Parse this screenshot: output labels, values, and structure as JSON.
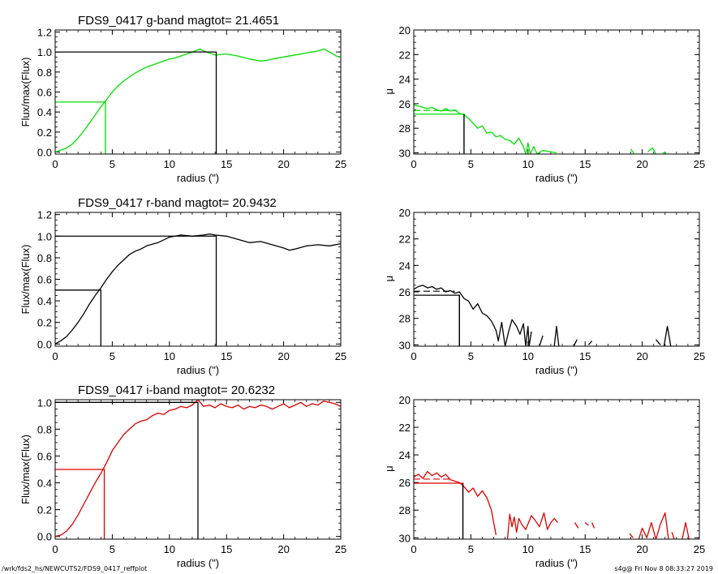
{
  "footer": {
    "path": "/wrk/fds2_hs/NEWCUTS2/FDS9_0417_reffplot",
    "stamp": "s4g@  Fri Nov  8 08:33:27 2019"
  },
  "chart_data": [
    {
      "type": "line",
      "title": "FDS9_0417 g-band  magtot=     21.4651",
      "xlabel": "radius (\")",
      "ylabel": "Flux/max(Flux)",
      "xlim": [
        0,
        25
      ],
      "ylim": [
        -0.02,
        1.22
      ],
      "xticks": [
        0,
        5,
        10,
        15,
        20,
        25
      ],
      "yticks": [
        0.0,
        0.2,
        0.4,
        0.6,
        0.8,
        1.0,
        1.2
      ],
      "yticklabels": [
        "0.0",
        "0.2",
        "0.4",
        "0.6",
        "0.8",
        "1.0",
        "1.2"
      ],
      "color": "#00e000",
      "series": [
        {
          "x": [
            0,
            0.5,
            1,
            1.5,
            2,
            2.5,
            3,
            3.5,
            4,
            4.4,
            5,
            5.5,
            6,
            7,
            8,
            9,
            10,
            10.5,
            11,
            12,
            12.7,
            13,
            14,
            15,
            16,
            17,
            18,
            18.7,
            19,
            20,
            21,
            22,
            23,
            23.5,
            24,
            24.6,
            25
          ],
          "y": [
            0,
            0.02,
            0.04,
            0.08,
            0.14,
            0.21,
            0.29,
            0.37,
            0.45,
            0.51,
            0.6,
            0.66,
            0.71,
            0.79,
            0.85,
            0.89,
            0.93,
            0.94,
            0.96,
            1.0,
            1.03,
            1.01,
            0.97,
            0.98,
            0.96,
            0.93,
            0.91,
            0.92,
            0.93,
            0.95,
            0.97,
            0.99,
            1.01,
            1.03,
            1.0,
            0.96,
            0.95
          ]
        }
      ],
      "markers": {
        "x_half": 4.4,
        "y_half": 0.5,
        "x_total": 14.1,
        "y_total": 1.0
      }
    },
    {
      "type": "line",
      "xlabel": "radius (\")",
      "ylabel": "μ",
      "xlim": [
        0,
        25
      ],
      "ylim": [
        30.1,
        20
      ],
      "y_inverted": true,
      "xticks": [
        0,
        5,
        10,
        15,
        20,
        25
      ],
      "yticks": [
        20,
        22,
        24,
        26,
        28,
        30
      ],
      "color": "#00e000",
      "series": [
        {
          "x": [
            0,
            0.4,
            0.8,
            1.2,
            1.6,
            2,
            2.4,
            2.8,
            3.2,
            3.6,
            4,
            4.4,
            4.8,
            5.2,
            5.6,
            6,
            6.4,
            6.8,
            7.2,
            7.6,
            8,
            8.4,
            8.8,
            9.2,
            9.6,
            9.8,
            10,
            10.2,
            10.5,
            10.8,
            11.3,
            12.5
          ],
          "y": [
            26.1,
            26.2,
            26.3,
            26.4,
            26.3,
            26.5,
            26.6,
            26.4,
            26.6,
            26.5,
            26.8,
            26.9,
            27.2,
            27.6,
            28.0,
            27.8,
            28.4,
            28.3,
            28.7,
            28.6,
            28.9,
            29.0,
            29.3,
            28.8,
            29.5,
            30.1,
            29.2,
            30.1,
            29.5,
            30.1,
            29.8,
            30.0
          ]
        },
        {
          "x": [
            19,
            19.3
          ],
          "y": [
            29.7,
            30.1
          ]
        },
        {
          "x": [
            20.5,
            20.9,
            21.2
          ],
          "y": [
            29.9,
            29.6,
            30.1
          ]
        },
        {
          "x": [
            21.8,
            22.1
          ],
          "y": [
            30.0,
            30.0
          ]
        }
      ],
      "markers": {
        "x_reff": 4.4,
        "y_reff": 26.85,
        "dash_y": 26.55,
        "dash_x": [
          0,
          3.8
        ]
      }
    },
    {
      "type": "line",
      "title": "FDS9_0417 r-band  magtot=     20.9432",
      "xlabel": "radius (\")",
      "ylabel": "Flux/max(Flux)",
      "xlim": [
        0,
        25
      ],
      "ylim": [
        -0.02,
        1.22
      ],
      "xticks": [
        0,
        5,
        10,
        15,
        20,
        25
      ],
      "yticks": [
        0.0,
        0.2,
        0.4,
        0.6,
        0.8,
        1.0,
        1.2
      ],
      "yticklabels": [
        "0.0",
        "0.2",
        "0.4",
        "0.6",
        "0.8",
        "1.0",
        "1.2"
      ],
      "color": "#000000",
      "series": [
        {
          "x": [
            0,
            0.5,
            1,
            1.5,
            2,
            2.5,
            3,
            3.5,
            4,
            4.5,
            5,
            5.5,
            6,
            6.5,
            7,
            7.5,
            8,
            9,
            10,
            11,
            12,
            13,
            13.5,
            14,
            15,
            16,
            17,
            18,
            19,
            20,
            20.5,
            21,
            22,
            23,
            24,
            25
          ],
          "y": [
            0,
            0.03,
            0.07,
            0.13,
            0.2,
            0.28,
            0.37,
            0.45,
            0.52,
            0.6,
            0.67,
            0.73,
            0.78,
            0.83,
            0.86,
            0.88,
            0.91,
            0.94,
            0.99,
            1.01,
            1.0,
            1.01,
            1.02,
            1.01,
            1.0,
            0.97,
            0.94,
            0.95,
            0.92,
            0.89,
            0.87,
            0.88,
            0.91,
            0.92,
            0.91,
            0.93
          ]
        }
      ],
      "markers": {
        "x_half": 4.0,
        "y_half": 0.5,
        "x_total": 14.1,
        "y_total": 1.0
      }
    },
    {
      "type": "line",
      "xlabel": "radius (\")",
      "ylabel": "μ",
      "xlim": [
        0,
        25
      ],
      "ylim": [
        30.1,
        20
      ],
      "y_inverted": true,
      "xticks": [
        0,
        5,
        10,
        15,
        20,
        25
      ],
      "yticks": [
        20,
        22,
        24,
        26,
        28,
        30
      ],
      "color": "#000000",
      "series": [
        {
          "x": [
            0,
            0.4,
            0.8,
            1.2,
            1.6,
            2,
            2.4,
            2.8,
            3.2,
            3.6,
            4,
            4.4,
            4.8,
            5.2,
            5.6,
            6,
            6.4,
            6.8,
            7.2,
            7.4,
            7.7,
            8,
            8.3,
            8.6,
            9,
            9.3,
            9.6,
            9.8,
            10,
            10.1,
            10.3
          ],
          "y": [
            25.8,
            25.6,
            25.5,
            25.7,
            25.6,
            25.8,
            25.7,
            26.0,
            25.9,
            26.1,
            26.0,
            26.5,
            26.7,
            27.3,
            26.9,
            27.6,
            27.8,
            28.2,
            28.9,
            29.7,
            28.3,
            30.1,
            29.0,
            28.1,
            28.6,
            29.2,
            28.4,
            30.1,
            28.6,
            30.1,
            29.0
          ]
        },
        {
          "x": [
            11,
            11.3
          ],
          "y": [
            30.1,
            29.3
          ]
        },
        {
          "x": [
            12.3,
            12.5,
            12.7
          ],
          "y": [
            30.1,
            28.6,
            30.1
          ]
        },
        {
          "x": [
            14,
            14.3
          ],
          "y": [
            30.1,
            29.6
          ]
        },
        {
          "x": [
            15.3,
            15.6
          ],
          "y": [
            30.0,
            29.7
          ]
        },
        {
          "x": [
            21.2,
            21.6
          ],
          "y": [
            29.6,
            30.0
          ]
        },
        {
          "x": [
            21.9,
            22.2,
            22.5
          ],
          "y": [
            30.1,
            28.6,
            30.1
          ]
        }
      ],
      "markers": {
        "x_reff": 4.0,
        "y_reff": 26.25,
        "dash_y": 25.95,
        "dash_x": [
          0,
          3.6
        ]
      }
    },
    {
      "type": "line",
      "title": "FDS9_0417 i-band  magtot=     20.6232",
      "xlabel": "radius (\")",
      "ylabel": "Flux/max(Flux)",
      "xlim": [
        0,
        25
      ],
      "ylim": [
        -0.02,
        1.02
      ],
      "xticks": [
        0,
        5,
        10,
        15,
        20,
        25
      ],
      "yticks": [
        0.0,
        0.2,
        0.4,
        0.6,
        0.8,
        1.0
      ],
      "yticklabels": [
        "0.0",
        "0.2",
        "0.4",
        "0.6",
        "0.8",
        "1.0"
      ],
      "color": "#dd0000",
      "series": [
        {
          "x": [
            0,
            0.5,
            1,
            1.5,
            2,
            2.5,
            3,
            3.5,
            4,
            4.5,
            5,
            5.5,
            6,
            6.5,
            7,
            7.5,
            8,
            8.5,
            9,
            9.5,
            10,
            10.5,
            11,
            11.5,
            12,
            12.5,
            13,
            13.5,
            14,
            14.5,
            15,
            15.5,
            16,
            16.5,
            17,
            17.5,
            18,
            18.5,
            19,
            19.5,
            20,
            20.5,
            21,
            21.5,
            22,
            22.5,
            23,
            23.5,
            24,
            24.5,
            25
          ],
          "y": [
            0,
            0.01,
            0.04,
            0.09,
            0.16,
            0.24,
            0.32,
            0.4,
            0.47,
            0.55,
            0.64,
            0.7,
            0.76,
            0.8,
            0.84,
            0.86,
            0.87,
            0.9,
            0.92,
            0.91,
            0.94,
            0.95,
            0.97,
            0.96,
            0.98,
            1.02,
            0.97,
            0.98,
            0.96,
            0.99,
            0.97,
            0.96,
            0.98,
            0.95,
            0.97,
            0.96,
            0.98,
            0.97,
            0.95,
            0.97,
            0.99,
            0.96,
            0.98,
            1.0,
            0.97,
            0.99,
            0.98,
            1.01,
            1.0,
            0.99,
            0.97
          ]
        }
      ],
      "markers": {
        "x_half": 4.3,
        "y_half": 0.5,
        "x_total": 12.5,
        "y_total": 1.0
      }
    },
    {
      "type": "line",
      "xlabel": "radius (\")",
      "ylabel": "μ",
      "xlim": [
        0,
        25
      ],
      "ylim": [
        30.1,
        20
      ],
      "y_inverted": true,
      "xticks": [
        0,
        5,
        10,
        15,
        20,
        25
      ],
      "yticks": [
        20,
        22,
        24,
        26,
        28,
        30
      ],
      "color": "#dd0000",
      "series": [
        {
          "x": [
            0,
            0.4,
            0.8,
            1.2,
            1.6,
            2,
            2.4,
            2.8,
            3.2,
            3.6,
            4,
            4.4,
            4.8,
            5.2,
            5.6,
            6,
            6.4,
            6.8,
            7.2
          ],
          "y": [
            25.6,
            25.4,
            25.7,
            25.2,
            25.5,
            25.3,
            25.6,
            25.4,
            25.8,
            25.9,
            26.0,
            26.3,
            26.7,
            26.4,
            27.0,
            26.6,
            27.1,
            28.0,
            29.8
          ]
        },
        {
          "x": [
            8.2,
            8.4,
            8.6,
            8.8,
            9.0,
            9.2,
            9.5,
            9.8,
            10.0,
            10.3,
            10.6,
            11.0,
            11.4,
            11.7,
            12.0,
            12.3,
            12.6
          ],
          "y": [
            30.1,
            28.3,
            29.2,
            28.5,
            29.6,
            28.6,
            29.1,
            29.4,
            29.0,
            28.4,
            28.7,
            29.2,
            28.2,
            29.4,
            28.9,
            28.6,
            28.9
          ]
        },
        {
          "x": [
            14.1,
            14.4
          ],
          "y": [
            28.9,
            29.3
          ]
        },
        {
          "x": [
            15.0,
            15.3
          ],
          "y": [
            28.9,
            29.1
          ]
        },
        {
          "x": [
            15.6,
            15.8
          ],
          "y": [
            28.9,
            29.3
          ]
        },
        {
          "x": [
            18.9,
            19.2
          ],
          "y": [
            29.7,
            30.0
          ]
        },
        {
          "x": [
            19.7,
            20.0,
            20.4,
            20.8,
            21.2,
            21.6,
            22.0,
            22.3
          ],
          "y": [
            30.1,
            29.3,
            30.0,
            28.9,
            30.1,
            29.0,
            28.2,
            30.1
          ]
        },
        {
          "x": [
            22.6,
            22.8
          ],
          "y": [
            29.6,
            30.1
          ]
        },
        {
          "x": [
            23.5,
            23.8,
            24.1
          ],
          "y": [
            30.1,
            28.9,
            30.1
          ]
        }
      ],
      "markers": {
        "x_reff": 4.3,
        "y_reff": 26.05,
        "dash_y": 25.75,
        "dash_x": [
          0,
          3.4
        ]
      }
    }
  ]
}
